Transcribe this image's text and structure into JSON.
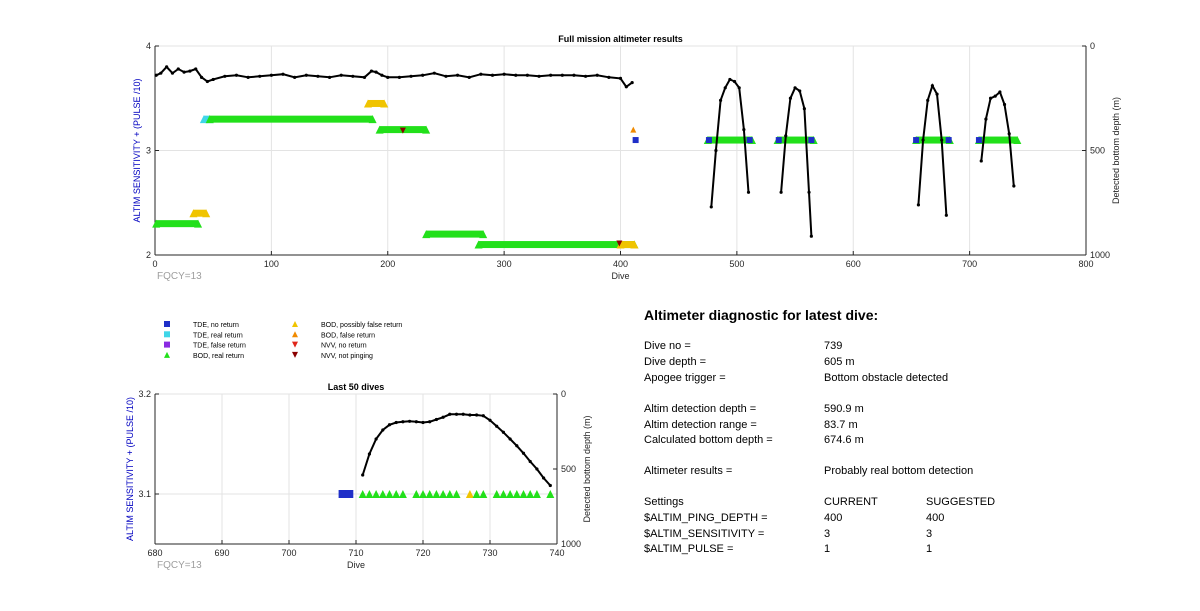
{
  "colors": {
    "axis": "#262626",
    "left_axis_label": "#0000c0",
    "grid": "#e3e3e3",
    "trace": "#000000",
    "tde_no_return": "#1f2fc8",
    "tde_real_return": "#3fd6e8",
    "tde_false_return": "#8a2be2",
    "bod_real_return": "#22e01a",
    "bod_possibly_false": "#f0c400",
    "bod_false_return": "#f08a00",
    "nvv_no_return": "#e0261a",
    "nvv_not_pinging": "#8b0000",
    "fqcy": "#9e9e9e"
  },
  "chart_data": [
    {
      "type": "scatter",
      "title": "Full mission altimeter results",
      "xlabel": "Dive",
      "ylabel_left": "ALTIM SENSITIVITY + (PULSE /10)",
      "ylabel_right": "Detected bottom depth (m)",
      "xlim": [
        0,
        800
      ],
      "ylim_left": [
        2,
        4
      ],
      "ylim_right": [
        0,
        1000
      ],
      "right_axis_reversed": true,
      "x_ticks": [
        0,
        100,
        200,
        300,
        400,
        500,
        600,
        700,
        800
      ],
      "y_ticks_left": [
        2,
        3,
        4
      ],
      "y_ticks_right": [
        0,
        500,
        1000
      ],
      "grid": true,
      "annotation": "FQCY=13",
      "bars": [
        {
          "series": "BOD, real return",
          "x0": 1,
          "x1": 37,
          "y": 2.3
        },
        {
          "series": "BOD, possibly false return",
          "x0": 33,
          "x1": 44,
          "y": 2.4
        },
        {
          "series": "TDE, real return",
          "x0": 42,
          "x1": 47,
          "y": 3.3
        },
        {
          "series": "BOD, real return",
          "x0": 47,
          "x1": 187,
          "y": 3.3
        },
        {
          "series": "BOD, possibly false return",
          "x0": 183,
          "x1": 197,
          "y": 3.45
        },
        {
          "series": "BOD, real return",
          "x0": 193,
          "x1": 233,
          "y": 3.2
        },
        {
          "series": "BOD, real return",
          "x0": 233,
          "x1": 282,
          "y": 2.2
        },
        {
          "series": "BOD, real return",
          "x0": 278,
          "x1": 412,
          "y": 2.1
        },
        {
          "series": "BOD, possibly false return",
          "x0": 400,
          "x1": 412,
          "y": 2.1
        },
        {
          "series": "BOD, real return",
          "x0": 475,
          "x1": 513,
          "y": 3.1
        },
        {
          "series": "BOD, real return",
          "x0": 535,
          "x1": 566,
          "y": 3.1
        },
        {
          "series": "BOD, real return",
          "x0": 654,
          "x1": 683,
          "y": 3.1
        },
        {
          "series": "BOD, real return",
          "x0": 708,
          "x1": 741,
          "y": 3.1
        }
      ],
      "points": [
        {
          "series": "NVV, not pinging",
          "x": 213,
          "y": 3.19
        },
        {
          "series": "NVV, not pinging",
          "x": 399,
          "y": 2.11
        },
        {
          "series": "BOD, false return",
          "x": 411,
          "y": 3.2
        },
        {
          "series": "TDE, no return",
          "x": 413,
          "y": 3.1
        },
        {
          "series": "TDE, no return",
          "x": 476,
          "y": 3.1
        },
        {
          "series": "TDE, no return",
          "x": 511,
          "y": 3.1
        },
        {
          "series": "TDE, no return",
          "x": 536,
          "y": 3.1
        },
        {
          "series": "TDE, no return",
          "x": 564,
          "y": 3.1
        },
        {
          "series": "TDE, no return",
          "x": 654,
          "y": 3.1
        },
        {
          "series": "TDE, no return",
          "x": 682,
          "y": 3.1
        },
        {
          "series": "TDE, no return",
          "x": 708,
          "y": 3.1
        }
      ],
      "depth_traces": [
        {
          "x": [
            1,
            5,
            10,
            15,
            20,
            25,
            30,
            35,
            40,
            45,
            50,
            60,
            70,
            80,
            90,
            100,
            110,
            120,
            130,
            140,
            150,
            160,
            170,
            180,
            186,
            190,
            195,
            200,
            210,
            220,
            230,
            240,
            250,
            260,
            270,
            280,
            290,
            300,
            310,
            320,
            330,
            340,
            350,
            360,
            370,
            380,
            390,
            400,
            405,
            410
          ],
          "y": [
            140,
            130,
            100,
            130,
            110,
            125,
            120,
            110,
            150,
            170,
            160,
            145,
            140,
            150,
            145,
            140,
            135,
            150,
            140,
            145,
            150,
            140,
            145,
            150,
            120,
            125,
            140,
            150,
            150,
            145,
            140,
            130,
            145,
            140,
            150,
            135,
            140,
            135,
            140,
            140,
            145,
            140,
            140,
            140,
            145,
            140,
            150,
            155,
            195,
            175
          ]
        },
        {
          "x": [
            478,
            482,
            486,
            490,
            494,
            498,
            502,
            506,
            510
          ],
          "y": [
            770,
            500,
            260,
            200,
            160,
            170,
            200,
            400,
            700
          ]
        },
        {
          "x": [
            538,
            542,
            546,
            550,
            554,
            558,
            562,
            564
          ],
          "y": [
            700,
            430,
            250,
            200,
            215,
            300,
            700,
            910
          ]
        },
        {
          "x": [
            656,
            660,
            664,
            668,
            672,
            676,
            680
          ],
          "y": [
            760,
            450,
            260,
            190,
            230,
            450,
            810
          ]
        },
        {
          "x": [
            710,
            714,
            718,
            722,
            726,
            730,
            734,
            738
          ],
          "y": [
            550,
            350,
            250,
            240,
            220,
            280,
            420,
            670
          ]
        }
      ]
    },
    {
      "type": "scatter",
      "title": "Last 50 dives",
      "xlabel": "Dive",
      "ylabel_left": "ALTIM SENSITIVITY + (PULSE /10)",
      "ylabel_right": "Detected bottom depth (m)",
      "xlim": [
        680,
        740
      ],
      "ylim_left": [
        3.05,
        3.2
      ],
      "ylim_right": [
        0,
        1000
      ],
      "right_axis_reversed": true,
      "x_ticks": [
        680,
        690,
        700,
        710,
        720,
        730,
        740
      ],
      "y_ticks_left": [
        3.1,
        3.2
      ],
      "y_ticks_right": [
        0,
        500,
        1000
      ],
      "grid": true,
      "annotation": "FQCY=13",
      "points": [
        {
          "series": "TDE, no return",
          "x": 708,
          "y": 3.1
        },
        {
          "series": "TDE, no return",
          "x": 709,
          "y": 3.1
        },
        {
          "series": "BOD, real return",
          "x": 711,
          "y": 3.1
        },
        {
          "series": "BOD, real return",
          "x": 712,
          "y": 3.1
        },
        {
          "series": "BOD, real return",
          "x": 713,
          "y": 3.1
        },
        {
          "series": "BOD, real return",
          "x": 714,
          "y": 3.1
        },
        {
          "series": "BOD, real return",
          "x": 715,
          "y": 3.1
        },
        {
          "series": "BOD, real return",
          "x": 716,
          "y": 3.1
        },
        {
          "series": "BOD, real return",
          "x": 717,
          "y": 3.1
        },
        {
          "series": "BOD, real return",
          "x": 719,
          "y": 3.1
        },
        {
          "series": "BOD, real return",
          "x": 720,
          "y": 3.1
        },
        {
          "series": "BOD, real return",
          "x": 721,
          "y": 3.1
        },
        {
          "series": "BOD, real return",
          "x": 722,
          "y": 3.1
        },
        {
          "series": "BOD, real return",
          "x": 723,
          "y": 3.1
        },
        {
          "series": "BOD, real return",
          "x": 724,
          "y": 3.1
        },
        {
          "series": "BOD, real return",
          "x": 725,
          "y": 3.1
        },
        {
          "series": "BOD, possibly false return",
          "x": 727,
          "y": 3.1
        },
        {
          "series": "BOD, real return",
          "x": 728,
          "y": 3.1
        },
        {
          "series": "BOD, real return",
          "x": 729,
          "y": 3.1
        },
        {
          "series": "BOD, real return",
          "x": 731,
          "y": 3.1
        },
        {
          "series": "BOD, real return",
          "x": 732,
          "y": 3.1
        },
        {
          "series": "BOD, real return",
          "x": 733,
          "y": 3.1
        },
        {
          "series": "BOD, real return",
          "x": 734,
          "y": 3.1
        },
        {
          "series": "BOD, real return",
          "x": 735,
          "y": 3.1
        },
        {
          "series": "BOD, real return",
          "x": 736,
          "y": 3.1
        },
        {
          "series": "BOD, real return",
          "x": 737,
          "y": 3.1
        },
        {
          "series": "BOD, real return",
          "x": 739,
          "y": 3.1
        }
      ],
      "depth_traces": [
        {
          "x": [
            711,
            712,
            713,
            714,
            715,
            716,
            717,
            718,
            719,
            720,
            721,
            722,
            723,
            724,
            725,
            726,
            727,
            728,
            729,
            730,
            731,
            732,
            733,
            734,
            735,
            736,
            737,
            738,
            739
          ],
          "y": [
            540,
            400,
            300,
            240,
            205,
            190,
            185,
            182,
            185,
            190,
            185,
            170,
            155,
            135,
            135,
            135,
            140,
            140,
            145,
            175,
            215,
            255,
            300,
            345,
            395,
            450,
            500,
            560,
            610
          ]
        }
      ]
    }
  ],
  "legend": {
    "items": [
      {
        "label": "TDE, no return",
        "marker": "square",
        "color_key": "tde_no_return"
      },
      {
        "label": "TDE, real return",
        "marker": "square",
        "color_key": "tde_real_return"
      },
      {
        "label": "TDE, false return",
        "marker": "square",
        "color_key": "tde_false_return"
      },
      {
        "label": "BOD, real return",
        "marker": "triangle-up",
        "color_key": "bod_real_return"
      },
      {
        "label": "BOD, possibly false return",
        "marker": "triangle-up",
        "color_key": "bod_possibly_false"
      },
      {
        "label": "BOD, false return",
        "marker": "triangle-up",
        "color_key": "bod_false_return"
      },
      {
        "label": "NVV, no return",
        "marker": "triangle-down",
        "color_key": "nvv_no_return"
      },
      {
        "label": "NVV, not pinging",
        "marker": "triangle-down",
        "color_key": "nvv_not_pinging"
      }
    ]
  },
  "diagnostic": {
    "title": "Altimeter diagnostic for latest dive:",
    "rows": [
      {
        "label": "Dive no =",
        "value": "739"
      },
      {
        "label": "Dive depth =",
        "value": "605 m"
      },
      {
        "label": "Apogee trigger =",
        "value": "Bottom obstacle detected"
      },
      {
        "label": "Altim detection depth =",
        "value": "590.9 m"
      },
      {
        "label": "Altim detection range =",
        "value": "83.7 m"
      },
      {
        "label": "Calculated bottom depth =",
        "value": "674.6 m"
      },
      {
        "label": "Altimeter results =",
        "value": "Probably real bottom detection"
      }
    ],
    "settings": {
      "header": {
        "label": "Settings",
        "current": "CURRENT",
        "suggested": "SUGGESTED"
      },
      "rows": [
        {
          "label": "$ALTIM_PING_DEPTH =",
          "current": "400",
          "suggested": "400"
        },
        {
          "label": "$ALTIM_SENSITIVITY =",
          "current": "3",
          "suggested": "3"
        },
        {
          "label": "$ALTIM_PULSE =",
          "current": "1",
          "suggested": "1"
        }
      ]
    }
  }
}
